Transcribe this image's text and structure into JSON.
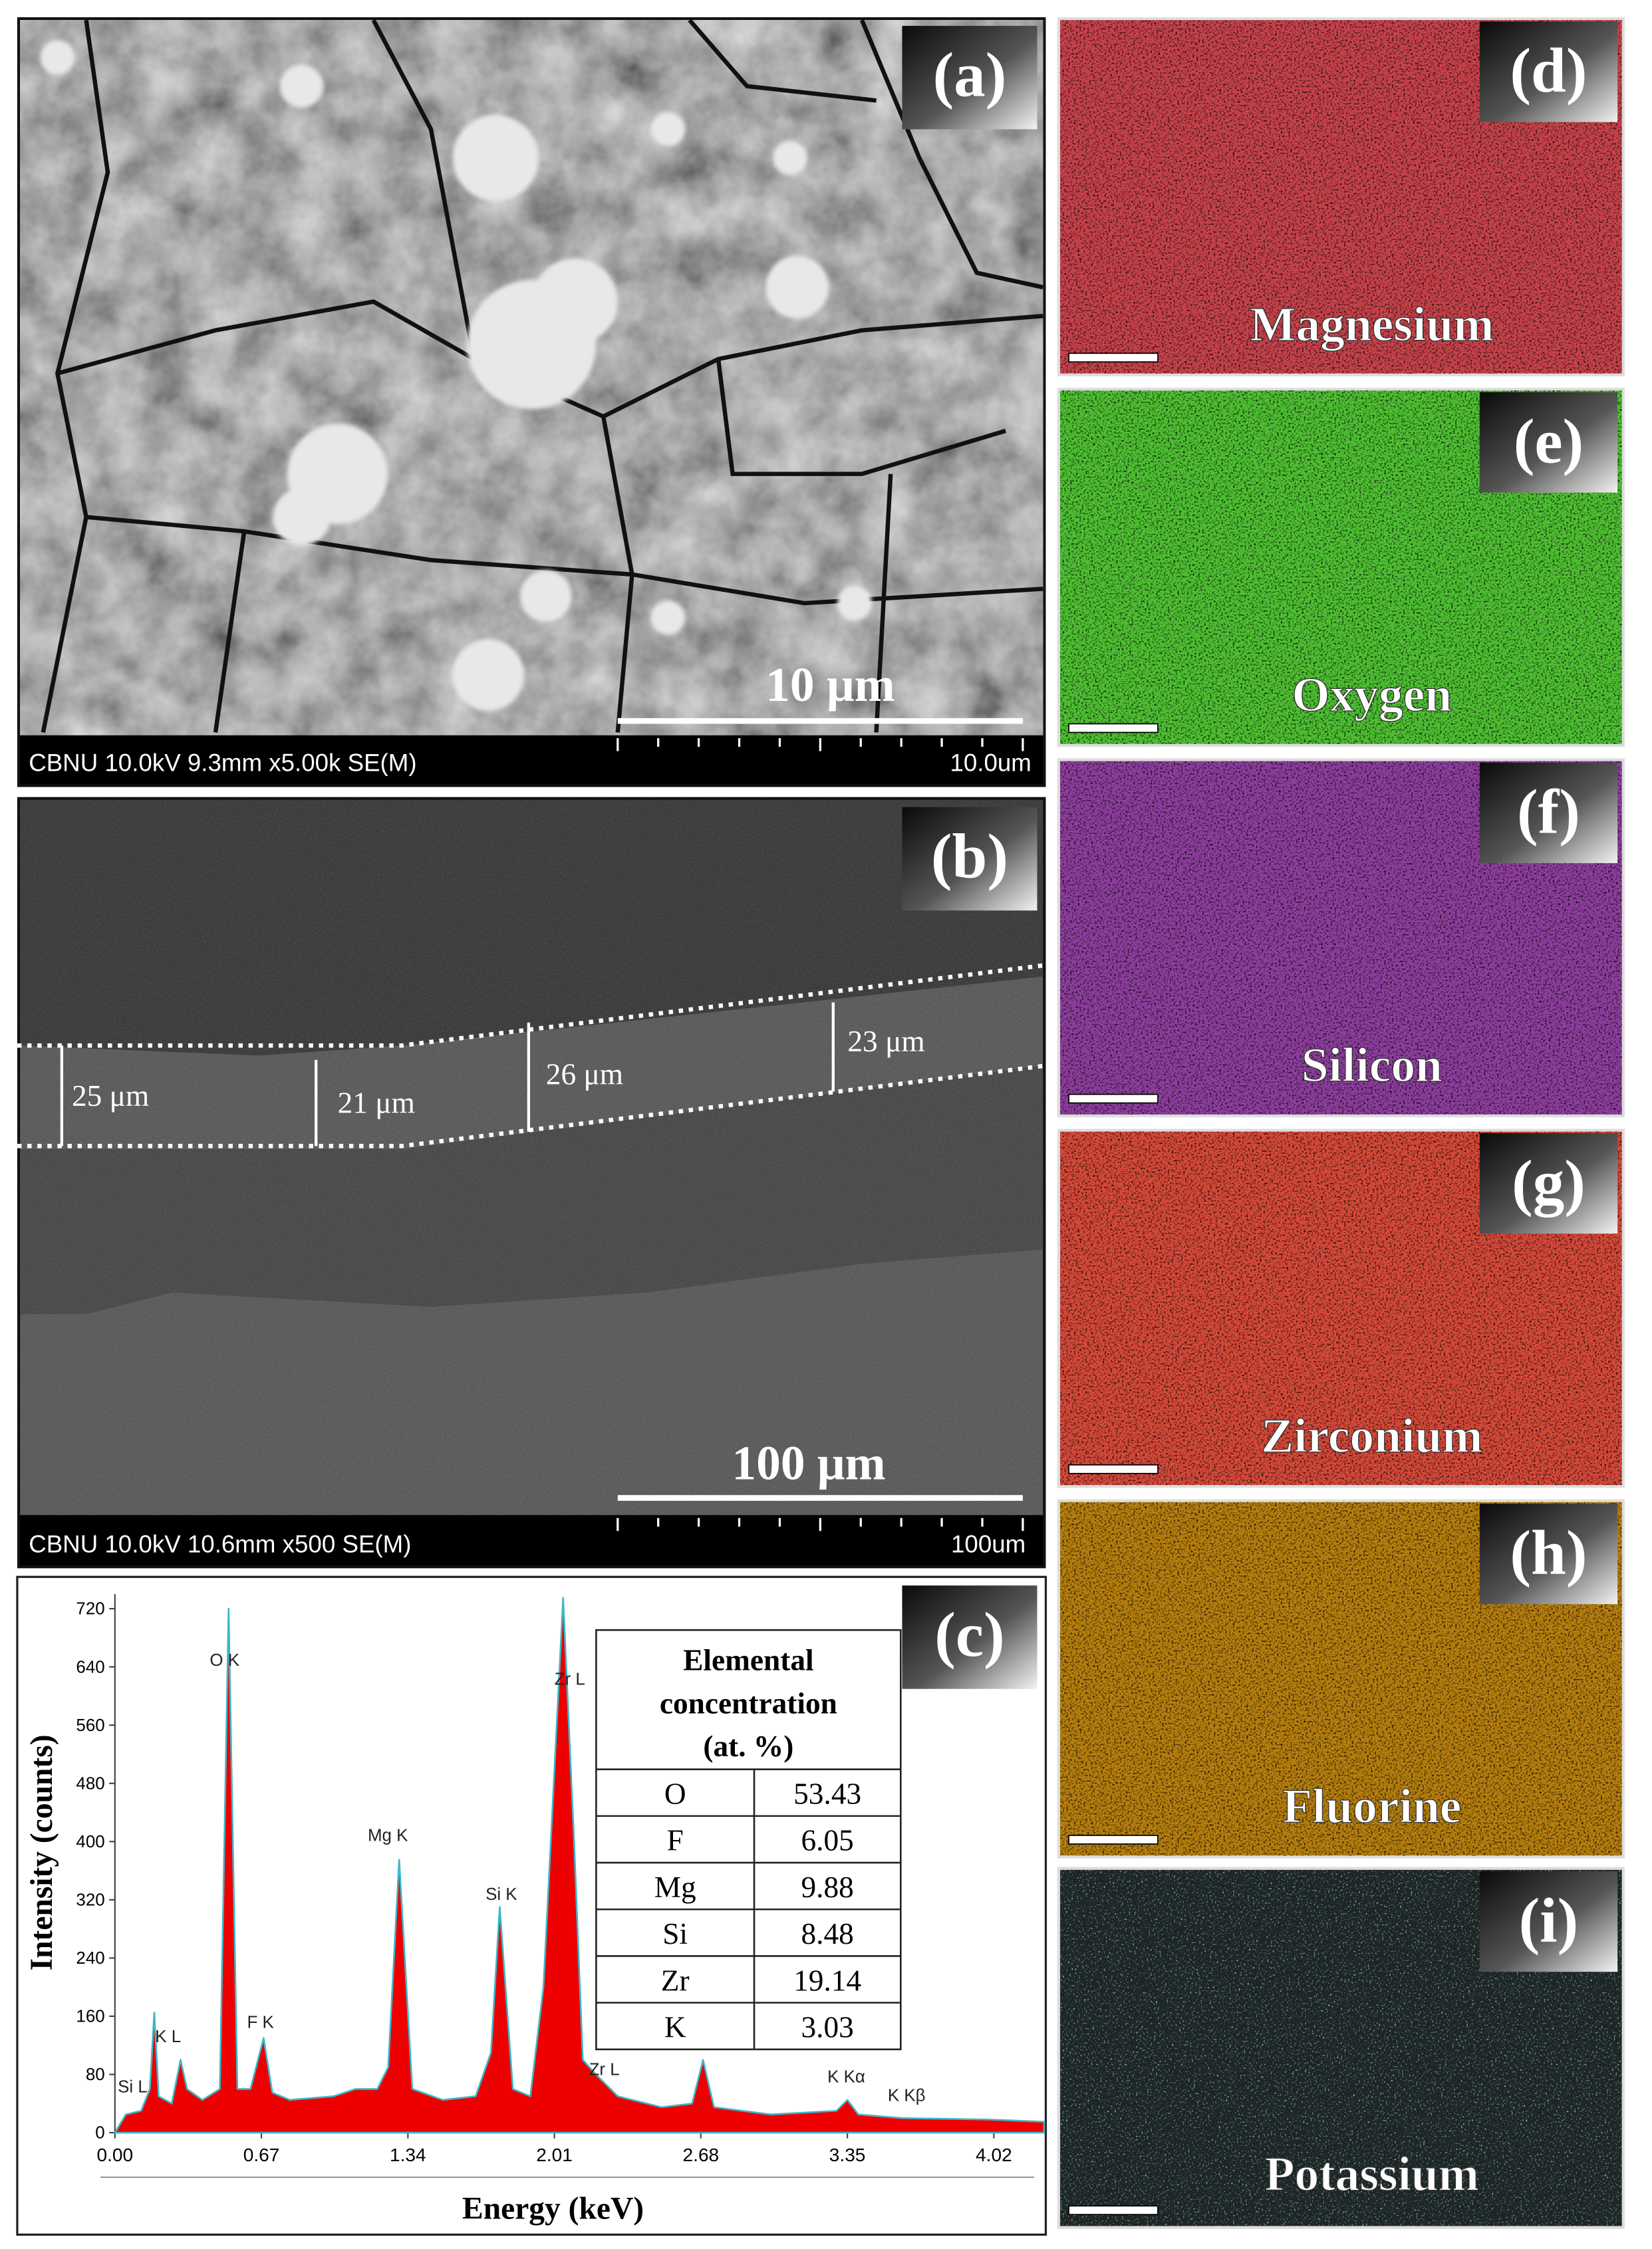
{
  "panels": {
    "a": {
      "label": "(a)",
      "scale_bar": "10 μm",
      "info": "CBNU 10.0kV 9.3mm x5.00k SE(M)",
      "info_scale": "10.0um"
    },
    "b": {
      "label": "(b)",
      "scale_bar": "100 μm",
      "info": "CBNU 10.0kV 10.6mm x500 SE(M)",
      "info_scale": "100um",
      "thickness": [
        "25 μm",
        "21 μm",
        "26 μm",
        "23 μm"
      ]
    },
    "c": {
      "label": "(c)",
      "table": {
        "header": [
          "Elemental",
          "concentration",
          "(at. %)"
        ],
        "rows": [
          [
            "O",
            53.43
          ],
          [
            "F",
            6.05
          ],
          [
            "Mg",
            9.88
          ],
          [
            "Si",
            8.48
          ],
          [
            "Zr",
            19.14
          ],
          [
            "K",
            3.03
          ]
        ]
      }
    }
  },
  "maps": [
    {
      "label": "(d)",
      "element": "Magnesium",
      "color": "#c9434c"
    },
    {
      "label": "(e)",
      "element": "Oxygen",
      "color": "#4fc233"
    },
    {
      "label": "(f)",
      "element": "Silicon",
      "color": "#8f3f9f"
    },
    {
      "label": "(g)",
      "element": "Zirconium",
      "color": "#d84a3a"
    },
    {
      "label": "(h)",
      "element": "Fluorine",
      "color": "#b8800e"
    },
    {
      "label": "(i)",
      "element": "Potassium",
      "color": "#1d2525"
    }
  ],
  "chart_data": {
    "type": "area",
    "xlabel": "Energy (keV)",
    "ylabel": "Intensity (counts)",
    "color": "#ee0000",
    "x": [
      0,
      0.05,
      0.12,
      0.16,
      0.18,
      0.2,
      0.26,
      0.3,
      0.33,
      0.4,
      0.48,
      0.52,
      0.56,
      0.62,
      0.68,
      0.72,
      0.8,
      1.0,
      1.1,
      1.2,
      1.25,
      1.3,
      1.36,
      1.5,
      1.65,
      1.72,
      1.76,
      1.82,
      1.9,
      1.96,
      2.05,
      2.1,
      2.14,
      2.2,
      2.3,
      2.5,
      2.64,
      2.69,
      2.74,
      3.0,
      3.3,
      3.35,
      3.4,
      3.6,
      4.0,
      4.25
    ],
    "values": [
      0,
      25,
      30,
      60,
      165,
      50,
      40,
      100,
      60,
      45,
      60,
      720,
      60,
      60,
      130,
      55,
      45,
      50,
      60,
      60,
      90,
      375,
      60,
      45,
      50,
      110,
      310,
      60,
      50,
      200,
      735,
      400,
      100,
      80,
      50,
      35,
      40,
      100,
      35,
      25,
      30,
      45,
      25,
      20,
      18,
      15
    ],
    "xlim": [
      0,
      4.25
    ],
    "ylim": [
      0,
      740
    ],
    "xticks": [
      {
        "value": 0,
        "label": "0.00"
      },
      0.67,
      1.34,
      2.01,
      2.68,
      3.35,
      4.02
    ],
    "yticks": [
      0,
      80,
      160,
      240,
      320,
      400,
      480,
      560,
      640,
      720
    ],
    "annotations": [
      "Si L",
      "K L",
      "O K",
      "F K",
      "Mg K",
      "Si K",
      "Zr L",
      "Zr L",
      "K Kα",
      "K Kβ"
    ]
  }
}
